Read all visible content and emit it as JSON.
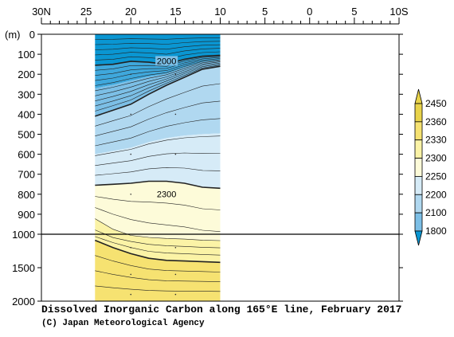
{
  "chart_data": {
    "type": "contour",
    "title": "Dissolved Inorganic Carbon along 165°E line, February 2017",
    "credit": "(C) Japan Meteorological Agency",
    "x_axis": {
      "tick_labels": [
        "30N",
        "25",
        "20",
        "15",
        "10",
        "5",
        "0",
        "5",
        "10S"
      ],
      "latitudes": [
        30,
        25,
        20,
        15,
        10,
        5,
        0,
        -5,
        -10
      ],
      "xlim": [
        30,
        -10
      ]
    },
    "y_axis": {
      "unit_label": "(m)",
      "tick_labels": [
        "0",
        "100",
        "200",
        "300",
        "400",
        "500",
        "600",
        "700",
        "800",
        "900",
        "1000",
        "1500",
        "2000"
      ],
      "depths": [
        0,
        100,
        200,
        300,
        400,
        500,
        600,
        700,
        800,
        900,
        1000,
        1500,
        2000
      ],
      "ylim": [
        2000,
        0
      ],
      "scale_break_depth": 1000
    },
    "data_coverage_latitude": [
      24,
      10
    ],
    "colorbar": {
      "levels": [
        1800,
        2100,
        2200,
        2250,
        2300,
        2330,
        2360,
        2450
      ],
      "labels": [
        "1800",
        "2100",
        "2200",
        "2250",
        "2300",
        "2330",
        "2360",
        "2450"
      ],
      "colors": [
        "#0a96d2",
        "#3fa8dc",
        "#7cbfe6",
        "#b0d8f0",
        "#d6ebf7",
        "#fdfbd9",
        "#fbf3a6",
        "#f6e271",
        "#e8d34a"
      ]
    },
    "contour_labels": [
      {
        "text": "2000",
        "lat": 16,
        "depth": 145
      },
      {
        "text": "2300",
        "lat": 16,
        "depth": 810
      }
    ],
    "thick_contours": [
      {
        "value": 2000,
        "points": [
          [
            24,
            155
          ],
          [
            22,
            150
          ],
          [
            20,
            135
          ],
          [
            18,
            140
          ],
          [
            16,
            150
          ],
          [
            14,
            125
          ],
          [
            12,
            110
          ],
          [
            10,
            105
          ]
        ]
      },
      {
        "value": 2200,
        "points": [
          [
            24,
            410
          ],
          [
            22,
            380
          ],
          [
            20,
            350
          ],
          [
            18,
            300
          ],
          [
            16,
            255
          ],
          [
            14,
            215
          ],
          [
            12,
            175
          ],
          [
            10,
            160
          ]
        ]
      },
      {
        "value": 2300,
        "points": [
          [
            24,
            755
          ],
          [
            22,
            750
          ],
          [
            20,
            745
          ],
          [
            18,
            735
          ],
          [
            16,
            735
          ],
          [
            14,
            745
          ],
          [
            12,
            765
          ],
          [
            10,
            770
          ]
        ]
      },
      {
        "value": 2360,
        "points": [
          [
            24,
            1090
          ],
          [
            22,
            1200
          ],
          [
            20,
            1290
          ],
          [
            18,
            1360
          ],
          [
            16,
            1390
          ],
          [
            14,
            1400
          ],
          [
            12,
            1410
          ],
          [
            10,
            1420
          ]
        ]
      }
    ],
    "grid": false
  }
}
